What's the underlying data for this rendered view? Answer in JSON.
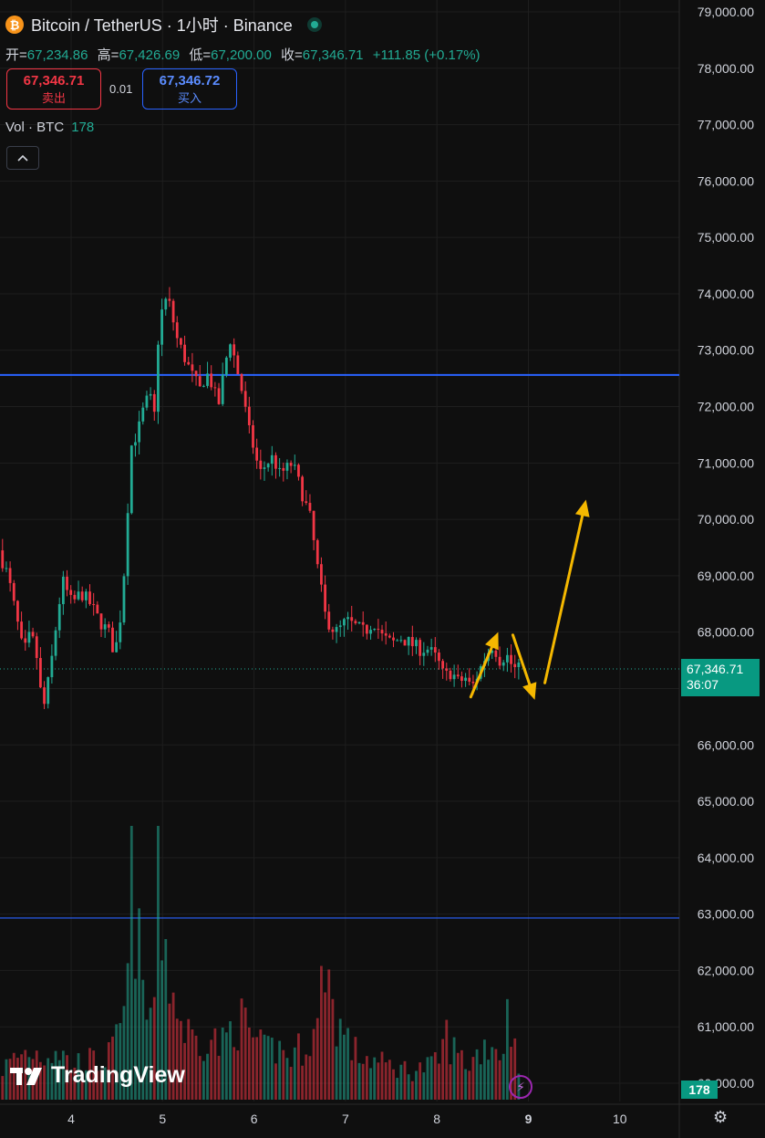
{
  "header": {
    "symbol": "Bitcoin / TetherUS · 1小时 · Binance",
    "coin_letter": "₿",
    "ohlc": {
      "open_label": "开=",
      "open": "67,234.86",
      "high_label": "高=",
      "high": "67,426.69",
      "low_label": "低=",
      "low": "67,200.00",
      "close_label": "收=",
      "close": "67,346.71",
      "change": "+111.85 (+0.17%)"
    }
  },
  "trade": {
    "sell_price": "67,346.71",
    "sell_label": "卖出",
    "spread": "0.01",
    "buy_price": "67,346.72",
    "buy_label": "买入"
  },
  "volume_legend": {
    "label": "Vol · BTC",
    "value": "178"
  },
  "last_price": {
    "price": "67,346.71",
    "countdown": "36:07"
  },
  "volume_tag": "178",
  "brand": "TradingView",
  "colors": {
    "up": "#22ab94",
    "down": "#f23645",
    "line": "#2962ff",
    "arrow": "#f5b800",
    "bg": "#0f0f0f"
  },
  "chart_data": {
    "type": "candlestick",
    "y_ticks": [
      79000,
      78000,
      77000,
      76000,
      75000,
      74000,
      73000,
      72000,
      71000,
      70000,
      69000,
      68000,
      67000,
      66000,
      65000,
      64000,
      63000,
      62000,
      61000,
      60000
    ],
    "y_tick_labels": [
      "79,000.00",
      "78,000.00",
      "77,000.00",
      "76,000.00",
      "75,000.00",
      "74,000.00",
      "73,000.00",
      "72,000.00",
      "71,000.00",
      "70,000.00",
      "69,000.00",
      "68,000.00",
      "67,000.00",
      "66,000.00",
      "65,000.00",
      "64,000.00",
      "63,000.00",
      "62,000.00",
      "61,000.00",
      "60,000.00"
    ],
    "x_tick_labels": [
      "4",
      "5",
      "6",
      "7",
      "8",
      "9",
      "10"
    ],
    "x_tick_days": [
      4,
      5,
      6,
      7,
      8,
      9,
      10
    ],
    "ylim": [
      59500,
      79200
    ],
    "xlim": [
      3.25,
      10.85
    ],
    "horizontal_lines": [
      72560,
      62930
    ],
    "current_price": 67346.71,
    "price_path": [
      [
        3.25,
        69450
      ],
      [
        3.35,
        69000
      ],
      [
        3.45,
        68200
      ],
      [
        3.52,
        67600
      ],
      [
        3.58,
        67900
      ],
      [
        3.65,
        67800
      ],
      [
        3.7,
        67000
      ],
      [
        3.75,
        66700
      ],
      [
        3.82,
        67400
      ],
      [
        3.9,
        68400
      ],
      [
        3.95,
        68900
      ],
      [
        4.05,
        68500
      ],
      [
        4.15,
        68700
      ],
      [
        4.25,
        68500
      ],
      [
        4.35,
        68200
      ],
      [
        4.45,
        68000
      ],
      [
        4.52,
        67600
      ],
      [
        4.6,
        68500
      ],
      [
        4.66,
        70200
      ],
      [
        4.7,
        71300
      ],
      [
        4.78,
        71600
      ],
      [
        4.84,
        72000
      ],
      [
        4.9,
        72200
      ],
      [
        4.95,
        71800
      ],
      [
        5.0,
        73400
      ],
      [
        5.06,
        73900
      ],
      [
        5.12,
        73800
      ],
      [
        5.2,
        73200
      ],
      [
        5.3,
        72800
      ],
      [
        5.38,
        72500
      ],
      [
        5.45,
        72300
      ],
      [
        5.52,
        72600
      ],
      [
        5.58,
        72400
      ],
      [
        5.65,
        72000
      ],
      [
        5.72,
        72700
      ],
      [
        5.78,
        73200
      ],
      [
        5.85,
        72700
      ],
      [
        5.92,
        72200
      ],
      [
        5.98,
        71600
      ],
      [
        6.05,
        71200
      ],
      [
        6.1,
        70800
      ],
      [
        6.18,
        71000
      ],
      [
        6.25,
        71100
      ],
      [
        6.32,
        70800
      ],
      [
        6.4,
        70900
      ],
      [
        6.46,
        71000
      ],
      [
        6.52,
        70700
      ],
      [
        6.58,
        70400
      ],
      [
        6.66,
        70000
      ],
      [
        6.72,
        69300
      ],
      [
        6.78,
        68700
      ],
      [
        6.82,
        68300
      ],
      [
        6.88,
        68100
      ],
      [
        6.95,
        68000
      ],
      [
        7.05,
        68200
      ],
      [
        7.15,
        68100
      ],
      [
        7.25,
        68000
      ],
      [
        7.35,
        68200
      ],
      [
        7.45,
        67900
      ],
      [
        7.55,
        67800
      ],
      [
        7.65,
        67900
      ],
      [
        7.75,
        67800
      ],
      [
        7.85,
        67700
      ],
      [
        7.95,
        67700
      ],
      [
        8.05,
        67500
      ],
      [
        8.12,
        67200
      ],
      [
        8.2,
        67300
      ],
      [
        8.28,
        67100
      ],
      [
        8.35,
        67200
      ],
      [
        8.42,
        67000
      ],
      [
        8.5,
        67300
      ],
      [
        8.58,
        67600
      ],
      [
        8.66,
        67800
      ],
      [
        8.72,
        67500
      ],
      [
        8.8,
        67600
      ],
      [
        8.88,
        67350
      ],
      [
        8.93,
        67340
      ]
    ],
    "volume_path": [
      [
        3.25,
        26
      ],
      [
        3.4,
        36
      ],
      [
        3.55,
        42
      ],
      [
        3.7,
        38
      ],
      [
        3.85,
        45
      ],
      [
        4.0,
        28
      ],
      [
        4.15,
        35
      ],
      [
        4.3,
        30
      ],
      [
        4.45,
        40
      ],
      [
        4.55,
        60
      ],
      [
        4.62,
        100
      ],
      [
        4.67,
        200
      ],
      [
        4.72,
        140
      ],
      [
        4.8,
        75
      ],
      [
        4.9,
        70
      ],
      [
        4.95,
        185
      ],
      [
        5.0,
        150
      ],
      [
        5.1,
        95
      ],
      [
        5.2,
        65
      ],
      [
        5.35,
        50
      ],
      [
        5.5,
        55
      ],
      [
        5.65,
        45
      ],
      [
        5.8,
        70
      ],
      [
        5.95,
        58
      ],
      [
        6.1,
        40
      ],
      [
        6.25,
        45
      ],
      [
        6.4,
        35
      ],
      [
        6.55,
        48
      ],
      [
        6.7,
        60
      ],
      [
        6.78,
        135
      ],
      [
        6.85,
        80
      ],
      [
        6.95,
        60
      ],
      [
        7.1,
        40
      ],
      [
        7.25,
        35
      ],
      [
        7.4,
        30
      ],
      [
        7.55,
        28
      ],
      [
        7.7,
        25
      ],
      [
        7.85,
        27
      ],
      [
        8.0,
        30
      ],
      [
        8.1,
        55
      ],
      [
        8.2,
        40
      ],
      [
        8.35,
        30
      ],
      [
        8.5,
        45
      ],
      [
        8.6,
        50
      ],
      [
        8.7,
        38
      ],
      [
        8.78,
        75
      ],
      [
        8.85,
        50
      ],
      [
        8.93,
        22
      ]
    ],
    "volume_max": 210,
    "annotations": [
      {
        "type": "arrow",
        "from": [
          8.37,
          66850
        ],
        "to": [
          8.67,
          68000
        ]
      },
      {
        "type": "arrow",
        "from": [
          8.83,
          67950
        ],
        "to": [
          9.07,
          66800
        ]
      },
      {
        "type": "arrow",
        "from": [
          9.18,
          67100
        ],
        "to": [
          9.63,
          70350
        ]
      }
    ]
  }
}
